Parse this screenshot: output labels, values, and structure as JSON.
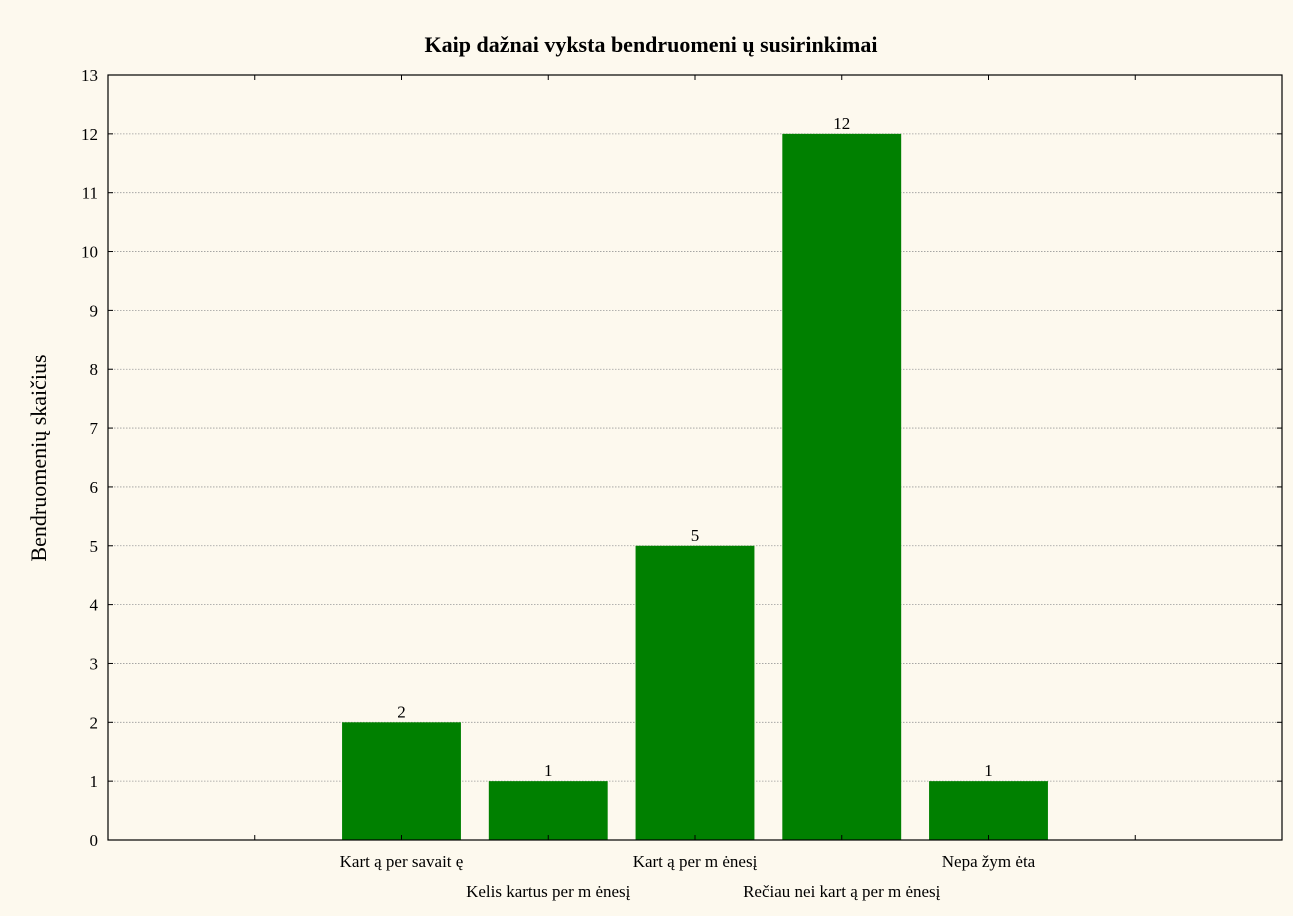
{
  "chart_data": {
    "type": "bar",
    "title": "Kaip dažnai vyksta bendruomeni ų susirinkimai",
    "xlabel": "",
    "ylabel": "Bendruomenių skaičius",
    "categories": [
      "Kart ą per savait ę",
      "Kelis kartus per m ėnesį",
      "Kart ą per m ėnesį",
      "Rečiau nei kart ą per m ėnesį",
      "Nepa žym ėta"
    ],
    "values": [
      2,
      1,
      5,
      12,
      1
    ],
    "ylim": [
      0,
      13
    ],
    "yticks": [
      0,
      1,
      2,
      3,
      4,
      5,
      6,
      7,
      8,
      9,
      10,
      11,
      12,
      13
    ],
    "grid": true,
    "bar_color": "#008000",
    "background_color": "#fdf9ee"
  }
}
